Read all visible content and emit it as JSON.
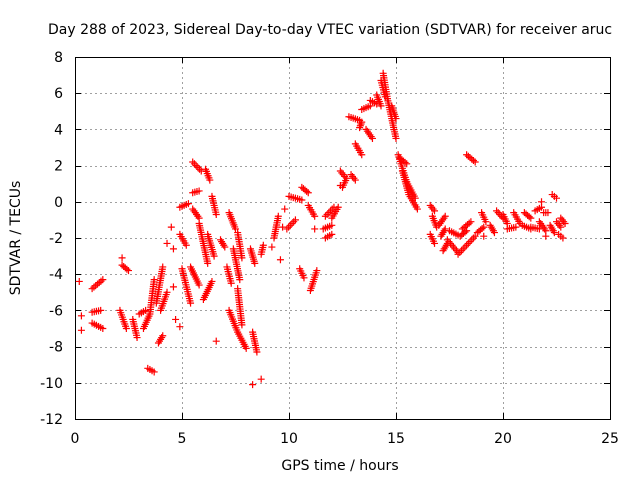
{
  "chart_data": {
    "type": "scatter",
    "title": "Day 288 of 2023, Sidereal Day-to-day VTEC variation (SDTVAR) for receiver aruc",
    "xlabel": "GPS time / hours",
    "ylabel": "SDTVAR / TECUs",
    "xlim": [
      0,
      25
    ],
    "ylim": [
      -12,
      8
    ],
    "xticks": [
      0,
      5,
      10,
      15,
      20,
      25
    ],
    "yticks": [
      -12,
      -10,
      -8,
      -6,
      -4,
      -2,
      0,
      2,
      4,
      6,
      8
    ],
    "grid": true,
    "marker": "+",
    "color": "#ff0000",
    "series": [
      {
        "name": "SDTVAR",
        "segments": [
          [
            [
              0.2,
              -4.4
            ]
          ],
          [
            [
              0.3,
              -6.3
            ]
          ],
          [
            [
              0.3,
              -7.1
            ]
          ],
          [
            [
              0.8,
              -4.8
            ],
            [
              1.3,
              -4.3
            ]
          ],
          [
            [
              0.8,
              -6.1
            ],
            [
              1.2,
              -6.0
            ]
          ],
          [
            [
              0.8,
              -6.7
            ],
            [
              1.3,
              -7.0
            ]
          ],
          [
            [
              2.2,
              -3.1
            ]
          ],
          [
            [
              2.2,
              -3.5
            ],
            [
              2.5,
              -3.8
            ]
          ],
          [
            [
              2.1,
              -6.0
            ],
            [
              2.4,
              -7.0
            ]
          ],
          [
            [
              2.7,
              -6.5
            ],
            [
              2.9,
              -7.5
            ]
          ],
          [
            [
              3.0,
              -6.2
            ],
            [
              3.3,
              -6.0
            ]
          ],
          [
            [
              3.2,
              -7.0
            ],
            [
              3.5,
              -6.2
            ],
            [
              3.7,
              -4.3
            ]
          ],
          [
            [
              3.4,
              -9.2
            ],
            [
              3.7,
              -9.4
            ]
          ],
          [
            [
              3.8,
              -5.6
            ],
            [
              4.1,
              -3.6
            ]
          ],
          [
            [
              3.9,
              -7.8
            ],
            [
              4.1,
              -7.4
            ]
          ],
          [
            [
              4.0,
              -6.0
            ],
            [
              4.3,
              -5.0
            ]
          ],
          [
            [
              4.3,
              -2.3
            ]
          ],
          [
            [
              4.5,
              -1.4
            ]
          ],
          [
            [
              4.6,
              -2.6
            ]
          ],
          [
            [
              4.6,
              -4.7
            ]
          ],
          [
            [
              4.7,
              -6.5
            ]
          ],
          [
            [
              4.9,
              -6.9
            ]
          ],
          [
            [
              4.9,
              -0.3
            ],
            [
              5.3,
              -0.1
            ]
          ],
          [
            [
              4.9,
              -1.8
            ],
            [
              5.2,
              -2.4
            ]
          ],
          [
            [
              5.0,
              -3.7
            ],
            [
              5.4,
              -5.6
            ]
          ],
          [
            [
              5.5,
              0.5
            ],
            [
              5.8,
              0.6
            ]
          ],
          [
            [
              5.5,
              2.2
            ],
            [
              5.9,
              1.7
            ]
          ],
          [
            [
              5.5,
              -0.4
            ],
            [
              5.8,
              -0.9
            ]
          ],
          [
            [
              5.4,
              -3.6
            ],
            [
              5.8,
              -4.6
            ]
          ],
          [
            [
              5.8,
              -1.2
            ],
            [
              6.2,
              -3.4
            ]
          ],
          [
            [
              6.0,
              -5.4
            ],
            [
              6.4,
              -4.4
            ]
          ],
          [
            [
              6.1,
              1.8
            ],
            [
              6.3,
              1.2
            ]
          ],
          [
            [
              6.4,
              0.3
            ],
            [
              6.6,
              -0.7
            ]
          ],
          [
            [
              6.2,
              -1.8
            ],
            [
              6.5,
              -3.0
            ]
          ],
          [
            [
              6.6,
              -7.7
            ]
          ],
          [
            [
              6.8,
              -2.1
            ],
            [
              7.0,
              -2.5
            ]
          ],
          [
            [
              7.1,
              -3.6
            ],
            [
              7.3,
              -4.5
            ]
          ],
          [
            [
              7.2,
              -0.6
            ],
            [
              7.5,
              -1.5
            ]
          ],
          [
            [
              7.2,
              -6.0
            ],
            [
              7.6,
              -7.2
            ],
            [
              8.0,
              -8.1
            ]
          ],
          [
            [
              7.4,
              -2.6
            ],
            [
              7.7,
              -4.3
            ]
          ],
          [
            [
              7.6,
              -4.8
            ],
            [
              7.8,
              -6.8
            ]
          ],
          [
            [
              7.6,
              -1.7
            ],
            [
              7.8,
              -3.1
            ]
          ],
          [
            [
              8.2,
              -2.6
            ],
            [
              8.4,
              -3.4
            ]
          ],
          [
            [
              8.3,
              -7.2
            ],
            [
              8.5,
              -8.3
            ]
          ],
          [
            [
              8.3,
              -10.1
            ]
          ],
          [
            [
              8.7,
              -9.8
            ]
          ],
          [
            [
              8.7,
              -2.9
            ],
            [
              8.8,
              -2.4
            ]
          ],
          [
            [
              9.2,
              -2.5
            ]
          ],
          [
            [
              9.3,
              -2.0
            ],
            [
              9.5,
              -0.8
            ]
          ],
          [
            [
              9.6,
              -3.2
            ]
          ],
          [
            [
              9.7,
              -1.4
            ]
          ],
          [
            [
              9.8,
              -0.4
            ]
          ],
          [
            [
              9.9,
              -1.5
            ],
            [
              10.3,
              -1.0
            ]
          ],
          [
            [
              10.0,
              0.3
            ],
            [
              10.6,
              0.1
            ]
          ],
          [
            [
              10.5,
              -3.7
            ],
            [
              10.7,
              -4.2
            ]
          ],
          [
            [
              10.6,
              0.8
            ],
            [
              10.9,
              0.5
            ]
          ],
          [
            [
              10.9,
              -0.2
            ],
            [
              11.2,
              -0.8
            ]
          ],
          [
            [
              11.0,
              -4.9
            ],
            [
              11.3,
              -3.8
            ]
          ],
          [
            [
              11.2,
              -1.5
            ]
          ],
          [
            [
              11.6,
              -1.5
            ],
            [
              12.0,
              -1.3
            ]
          ],
          [
            [
              11.7,
              -0.8
            ],
            [
              12.1,
              -0.3
            ]
          ],
          [
            [
              11.7,
              -2.0
            ],
            [
              12.0,
              -1.8
            ]
          ],
          [
            [
              12.0,
              -0.9
            ],
            [
              12.3,
              -0.3
            ]
          ],
          [
            [
              12.4,
              1.7
            ],
            [
              12.6,
              1.4
            ]
          ],
          [
            [
              12.4,
              0.9
            ]
          ],
          [
            [
              12.5,
              0.8
            ],
            [
              12.7,
              1.3
            ]
          ],
          [
            [
              12.9,
              1.5
            ],
            [
              13.1,
              1.2
            ]
          ],
          [
            [
              12.8,
              4.7
            ],
            [
              13.3,
              4.5
            ]
          ],
          [
            [
              13.1,
              3.2
            ],
            [
              13.4,
              2.6
            ]
          ],
          [
            [
              13.3,
              4.1
            ],
            [
              13.4,
              4.4
            ]
          ],
          [
            [
              13.4,
              5.1
            ],
            [
              13.8,
              5.3
            ]
          ],
          [
            [
              13.6,
              4.0
            ],
            [
              13.9,
              3.5
            ]
          ],
          [
            [
              13.8,
              5.6
            ],
            [
              14.1,
              5.4
            ]
          ],
          [
            [
              14.1,
              5.9
            ],
            [
              14.3,
              5.3
            ]
          ],
          [
            [
              14.3,
              6.7
            ],
            [
              14.5,
              5.8
            ]
          ],
          [
            [
              14.4,
              7.1
            ],
            [
              14.6,
              5.7
            ],
            [
              14.8,
              4.6
            ],
            [
              15.0,
              3.5
            ]
          ],
          [
            [
              14.8,
              5.3
            ],
            [
              15.0,
              4.6
            ]
          ],
          [
            [
              15.1,
              2.6
            ],
            [
              15.5,
              1.1
            ]
          ],
          [
            [
              15.2,
              2.4
            ],
            [
              15.5,
              2.1
            ]
          ],
          [
            [
              15.3,
              1.7
            ],
            [
              15.6,
              0.4
            ],
            [
              16.0,
              -0.4
            ]
          ],
          [
            [
              15.5,
              1.1
            ],
            [
              15.9,
              0.2
            ]
          ],
          [
            [
              16.6,
              -0.2
            ],
            [
              16.8,
              -0.5
            ]
          ],
          [
            [
              16.7,
              -0.8
            ],
            [
              16.9,
              -1.4
            ]
          ],
          [
            [
              16.6,
              -1.8
            ],
            [
              16.8,
              -2.3
            ]
          ],
          [
            [
              17.0,
              -1.3
            ],
            [
              17.3,
              -0.8
            ]
          ],
          [
            [
              17.1,
              -1.9
            ],
            [
              17.3,
              -1.5
            ]
          ],
          [
            [
              17.2,
              -2.7
            ],
            [
              17.4,
              -2.3
            ]
          ],
          [
            [
              17.4,
              -2.1
            ],
            [
              17.9,
              -2.8
            ]
          ],
          [
            [
              17.5,
              -1.6
            ],
            [
              18.0,
              -1.9
            ],
            [
              18.3,
              -1.6
            ]
          ],
          [
            [
              17.9,
              -2.9
            ],
            [
              18.3,
              -2.4
            ],
            [
              18.7,
              -1.9
            ]
          ],
          [
            [
              18.1,
              -1.5
            ],
            [
              18.5,
              -1.1
            ]
          ],
          [
            [
              18.3,
              2.6
            ],
            [
              18.7,
              2.2
            ]
          ],
          [
            [
              18.8,
              -1.7
            ],
            [
              19.1,
              -1.4
            ]
          ],
          [
            [
              19.0,
              -0.6
            ],
            [
              19.2,
              -1.1
            ]
          ],
          [
            [
              19.1,
              -1.9
            ]
          ],
          [
            [
              19.4,
              -1.3
            ],
            [
              19.6,
              -1.7
            ]
          ],
          [
            [
              19.7,
              -0.5
            ],
            [
              20.0,
              -0.9
            ]
          ],
          [
            [
              20.0,
              -0.7
            ],
            [
              20.2,
              -1.2
            ]
          ],
          [
            [
              20.2,
              -1.5
            ],
            [
              20.6,
              -1.4
            ]
          ],
          [
            [
              20.5,
              -0.6
            ],
            [
              20.8,
              -1.2
            ]
          ],
          [
            [
              20.9,
              -1.3
            ],
            [
              21.3,
              -1.5
            ]
          ],
          [
            [
              21.0,
              -0.6
            ],
            [
              21.3,
              -0.9
            ]
          ],
          [
            [
              21.3,
              -1.4
            ],
            [
              21.7,
              -1.5
            ]
          ],
          [
            [
              21.5,
              -0.5
            ],
            [
              21.8,
              -0.3
            ]
          ],
          [
            [
              21.7,
              -1.1
            ],
            [
              22.0,
              -1.6
            ]
          ],
          [
            [
              21.8,
              0.0
            ]
          ],
          [
            [
              21.9,
              -0.6
            ],
            [
              22.1,
              -0.6
            ]
          ],
          [
            [
              22.0,
              -1.9
            ]
          ],
          [
            [
              22.2,
              -1.3
            ],
            [
              22.4,
              -1.7
            ]
          ],
          [
            [
              22.3,
              0.4
            ],
            [
              22.5,
              0.2
            ]
          ],
          [
            [
              22.5,
              -1.1
            ],
            [
              22.7,
              -1.4
            ]
          ],
          [
            [
              22.6,
              -1.8
            ],
            [
              22.8,
              -2.0
            ]
          ],
          [
            [
              22.7,
              -0.9
            ],
            [
              22.9,
              -1.2
            ]
          ]
        ]
      }
    ]
  }
}
